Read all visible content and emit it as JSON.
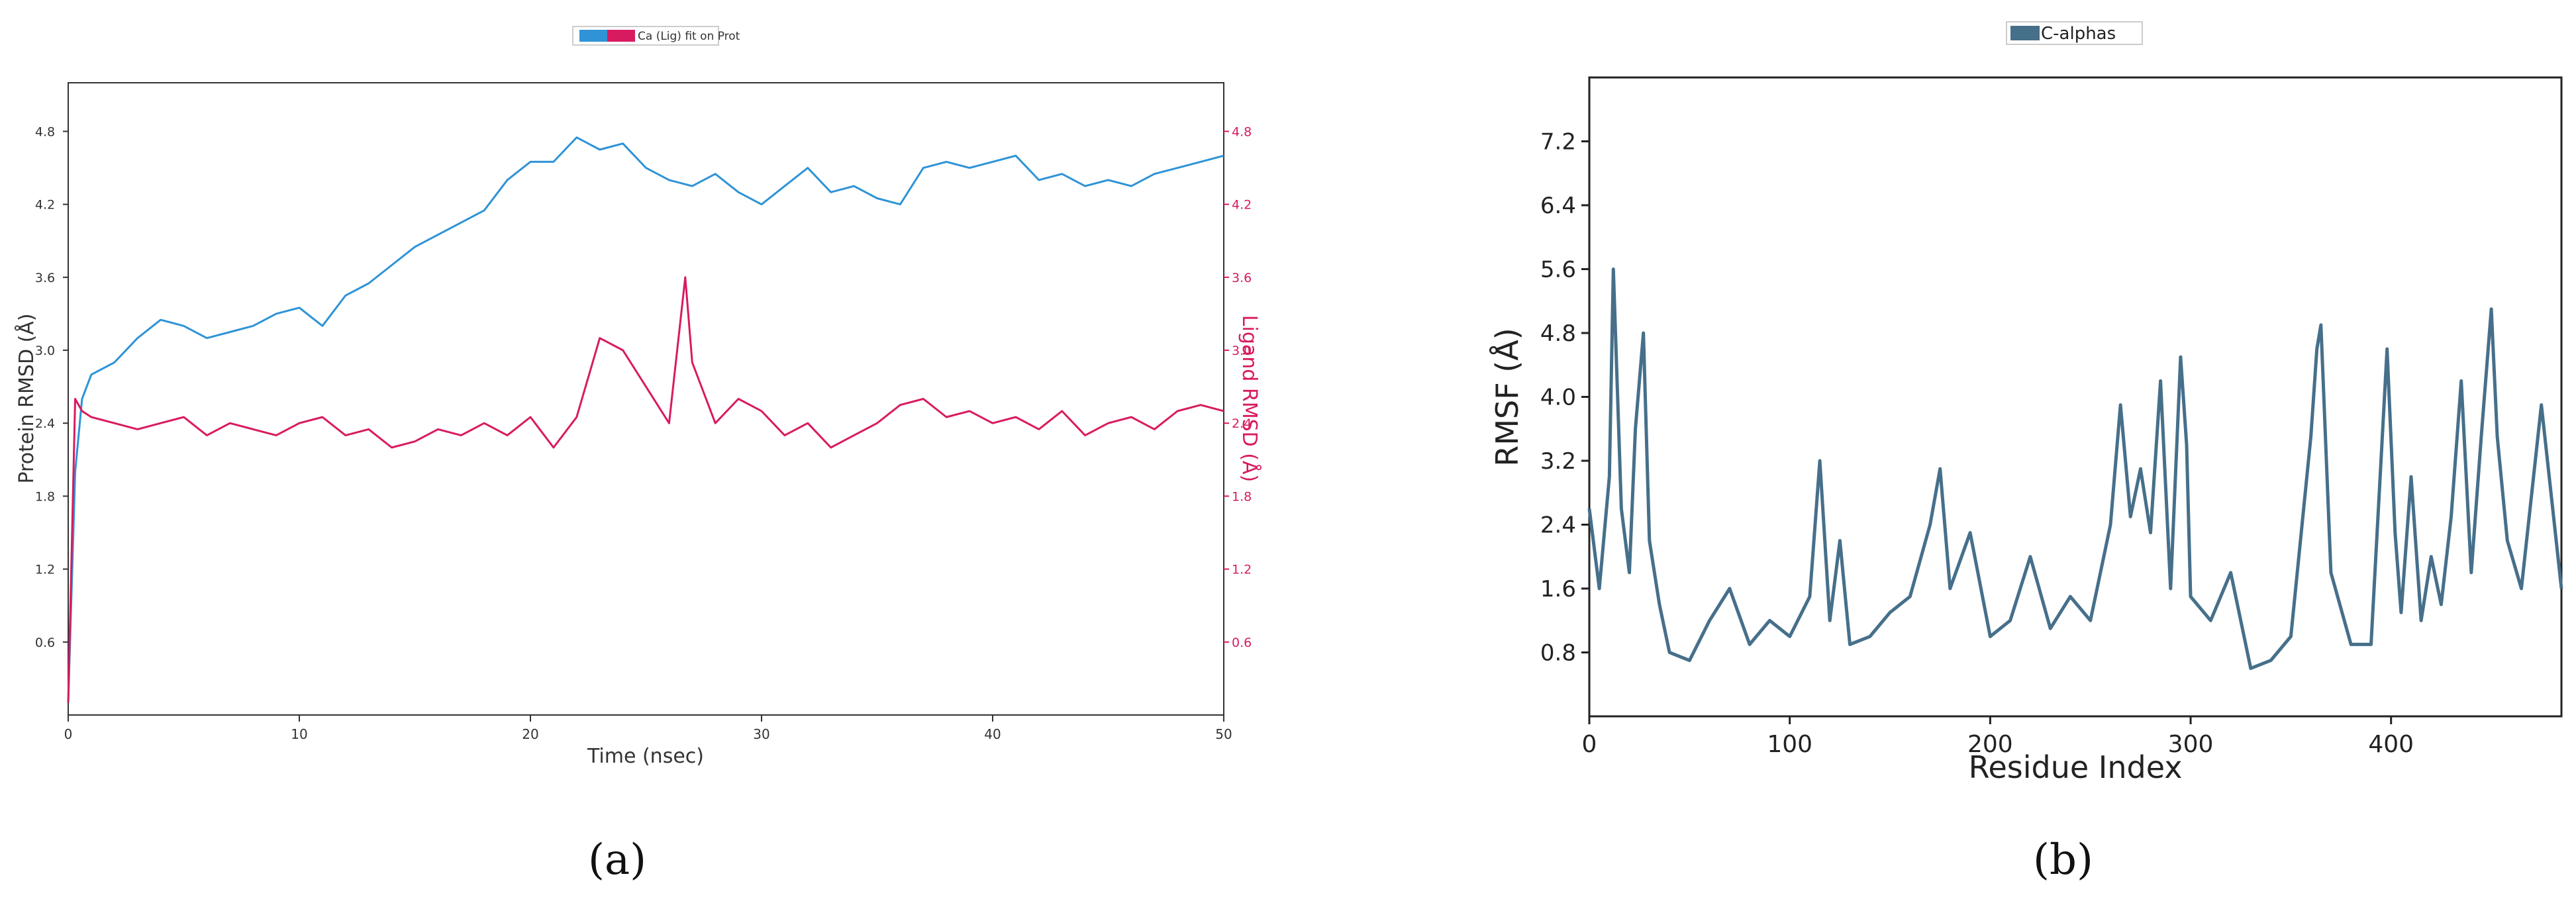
{
  "chart_data": [
    {
      "type": "line",
      "panel": "a",
      "legend_text": "Ca (Lig) fit on Prot",
      "legend_placement": "top-center",
      "xlabel": "Time (nsec)",
      "ylabel": "Protein RMSD (Å)",
      "y2label": "Ligand RMSD (Å)",
      "xlim": [
        0,
        50
      ],
      "ylim": [
        0,
        5.2
      ],
      "y2lim": [
        0,
        5.2
      ],
      "xticks": [
        "0",
        "10",
        "20",
        "30",
        "40",
        "50"
      ],
      "yticks": [
        "0.6",
        "1.2",
        "1.8",
        "2.4",
        "3.0",
        "3.6",
        "4.2",
        "4.8"
      ],
      "y2ticks": [
        "0.6",
        "1.2",
        "1.8",
        "2.4",
        "3.0",
        "3.6",
        "4.2",
        "4.8"
      ],
      "grid": false,
      "colors": {
        "protein": "#2f93d6",
        "ligand": "#d81b60",
        "axis": "#333333"
      },
      "series": [
        {
          "color": "#2f93d6",
          "axis": "left",
          "x": [
            0,
            0.3,
            0.6,
            1,
            2,
            3,
            4,
            5,
            6,
            7,
            8,
            9,
            10,
            11,
            12,
            13,
            14,
            15,
            16,
            17,
            18,
            19,
            20,
            21,
            22,
            23,
            24,
            25,
            26,
            27,
            28,
            29,
            30,
            31,
            32,
            33,
            34,
            35,
            36,
            37,
            38,
            39,
            40,
            41,
            42,
            43,
            44,
            45,
            46,
            47,
            48,
            49,
            50
          ],
          "y": [
            0.1,
            2.0,
            2.6,
            2.8,
            2.9,
            3.1,
            3.25,
            3.2,
            3.1,
            3.15,
            3.2,
            3.3,
            3.35,
            3.2,
            3.45,
            3.55,
            3.7,
            3.85,
            3.95,
            4.05,
            4.15,
            4.4,
            4.55,
            4.55,
            4.75,
            4.65,
            4.7,
            4.5,
            4.4,
            4.35,
            4.45,
            4.3,
            4.2,
            4.35,
            4.5,
            4.3,
            4.35,
            4.25,
            4.2,
            4.5,
            4.55,
            4.5,
            4.55,
            4.6,
            4.4,
            4.45,
            4.35,
            4.4,
            4.35,
            4.45,
            4.5,
            4.55,
            4.6
          ]
        },
        {
          "color": "#d81b60",
          "axis": "right",
          "x": [
            0,
            0.3,
            0.6,
            1,
            2,
            3,
            4,
            5,
            6,
            7,
            8,
            9,
            10,
            11,
            12,
            13,
            14,
            15,
            16,
            17,
            18,
            19,
            20,
            21,
            22,
            23,
            24,
            25,
            26,
            26.7,
            27,
            28,
            29,
            30,
            31,
            32,
            33,
            34,
            35,
            36,
            37,
            38,
            39,
            40,
            41,
            42,
            43,
            44,
            45,
            46,
            47,
            48,
            49,
            50
          ],
          "y": [
            0.1,
            2.6,
            2.5,
            2.45,
            2.4,
            2.35,
            2.4,
            2.45,
            2.3,
            2.4,
            2.35,
            2.3,
            2.4,
            2.45,
            2.3,
            2.35,
            2.2,
            2.25,
            2.35,
            2.3,
            2.4,
            2.3,
            2.45,
            2.2,
            2.45,
            3.1,
            3.0,
            2.7,
            2.4,
            3.6,
            2.9,
            2.4,
            2.6,
            2.5,
            2.3,
            2.4,
            2.2,
            2.3,
            2.4,
            2.55,
            2.6,
            2.45,
            2.5,
            2.4,
            2.45,
            2.35,
            2.5,
            2.3,
            2.4,
            2.45,
            2.35,
            2.5,
            2.55,
            2.5
          ]
        }
      ]
    },
    {
      "type": "line",
      "panel": "b",
      "legend_text": "C-alphas",
      "legend_placement": "top-center",
      "xlabel": "Residue Index",
      "ylabel": "RMSF (Å)",
      "xlim": [
        0,
        485
      ],
      "ylim": [
        0,
        8
      ],
      "xticks": [
        "0",
        "100",
        "200",
        "300",
        "400"
      ],
      "yticks": [
        "0.8",
        "1.6",
        "2.4",
        "3.2",
        "4.0",
        "4.8",
        "5.6",
        "6.4",
        "7.2"
      ],
      "grid": false,
      "colors": {
        "line": "#466f8a",
        "axis": "#222222"
      },
      "series": [
        {
          "name": "C-alphas",
          "color": "#466f8a",
          "x": [
            0,
            5,
            10,
            12,
            16,
            20,
            23,
            27,
            30,
            35,
            40,
            50,
            60,
            70,
            80,
            90,
            100,
            110,
            115,
            120,
            125,
            130,
            140,
            150,
            160,
            170,
            175,
            180,
            190,
            200,
            210,
            220,
            230,
            240,
            250,
            260,
            265,
            270,
            275,
            280,
            285,
            290,
            295,
            298,
            300,
            310,
            320,
            330,
            340,
            350,
            360,
            363,
            365,
            370,
            380,
            390,
            398,
            402,
            405,
            410,
            415,
            420,
            425,
            430,
            435,
            440,
            445,
            450,
            453,
            458,
            465,
            475,
            485
          ],
          "y": [
            2.6,
            1.6,
            3.0,
            5.6,
            2.6,
            1.8,
            3.6,
            4.8,
            2.2,
            1.4,
            0.8,
            0.7,
            1.2,
            1.6,
            0.9,
            1.2,
            1.0,
            1.5,
            3.2,
            1.2,
            2.2,
            0.9,
            1.0,
            1.3,
            1.5,
            2.4,
            3.1,
            1.6,
            2.3,
            1.0,
            1.2,
            2.0,
            1.1,
            1.5,
            1.2,
            2.4,
            3.9,
            2.5,
            3.1,
            2.3,
            4.2,
            1.6,
            4.5,
            3.4,
            1.5,
            1.2,
            1.8,
            0.6,
            0.7,
            1.0,
            3.5,
            4.6,
            4.9,
            1.8,
            0.9,
            0.9,
            4.6,
            2.3,
            1.3,
            3.0,
            1.2,
            2.0,
            1.4,
            2.5,
            4.2,
            1.8,
            3.5,
            5.1,
            3.5,
            2.2,
            1.6,
            3.9,
            1.6
          ]
        }
      ]
    }
  ],
  "captions": {
    "a": "(a)",
    "b": "(b)"
  }
}
